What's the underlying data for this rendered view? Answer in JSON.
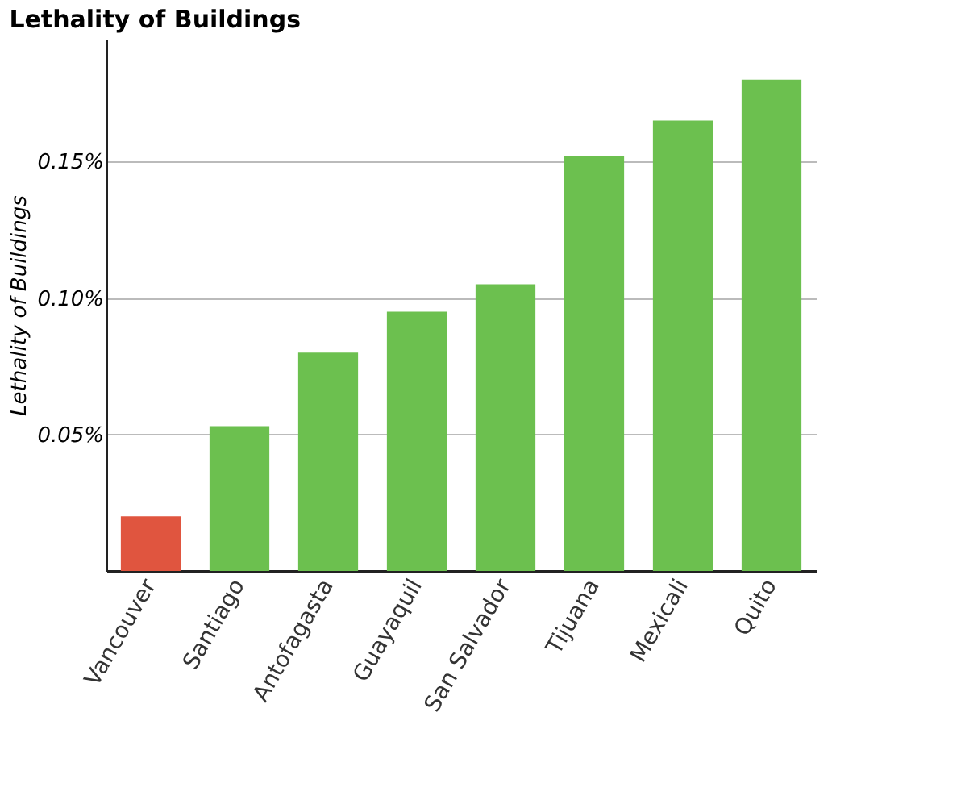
{
  "chart_data": {
    "type": "bar",
    "title": "Lethality of Buildings",
    "ylabel": "Lethality of Buildings",
    "categories": [
      "Vancouver",
      "Santiago",
      "Antofagasta",
      "Guayaquil",
      "San Salvador",
      "Tijuana",
      "Mexicali",
      "Quito"
    ],
    "values": [
      0.02,
      0.053,
      0.08,
      0.095,
      0.105,
      0.152,
      0.165,
      0.18
    ],
    "colors": [
      "#e0553f",
      "#6cc04f",
      "#6cc04f",
      "#6cc04f",
      "#6cc04f",
      "#6cc04f",
      "#6cc04f",
      "#6cc04f"
    ],
    "ylim": [
      0,
      0.195
    ],
    "yticks": [
      {
        "value": 0.05,
        "label": "0.05%"
      },
      {
        "value": 0.1,
        "label": "0.10%"
      },
      {
        "value": 0.15,
        "label": "0.15%"
      }
    ],
    "grid": "y"
  }
}
